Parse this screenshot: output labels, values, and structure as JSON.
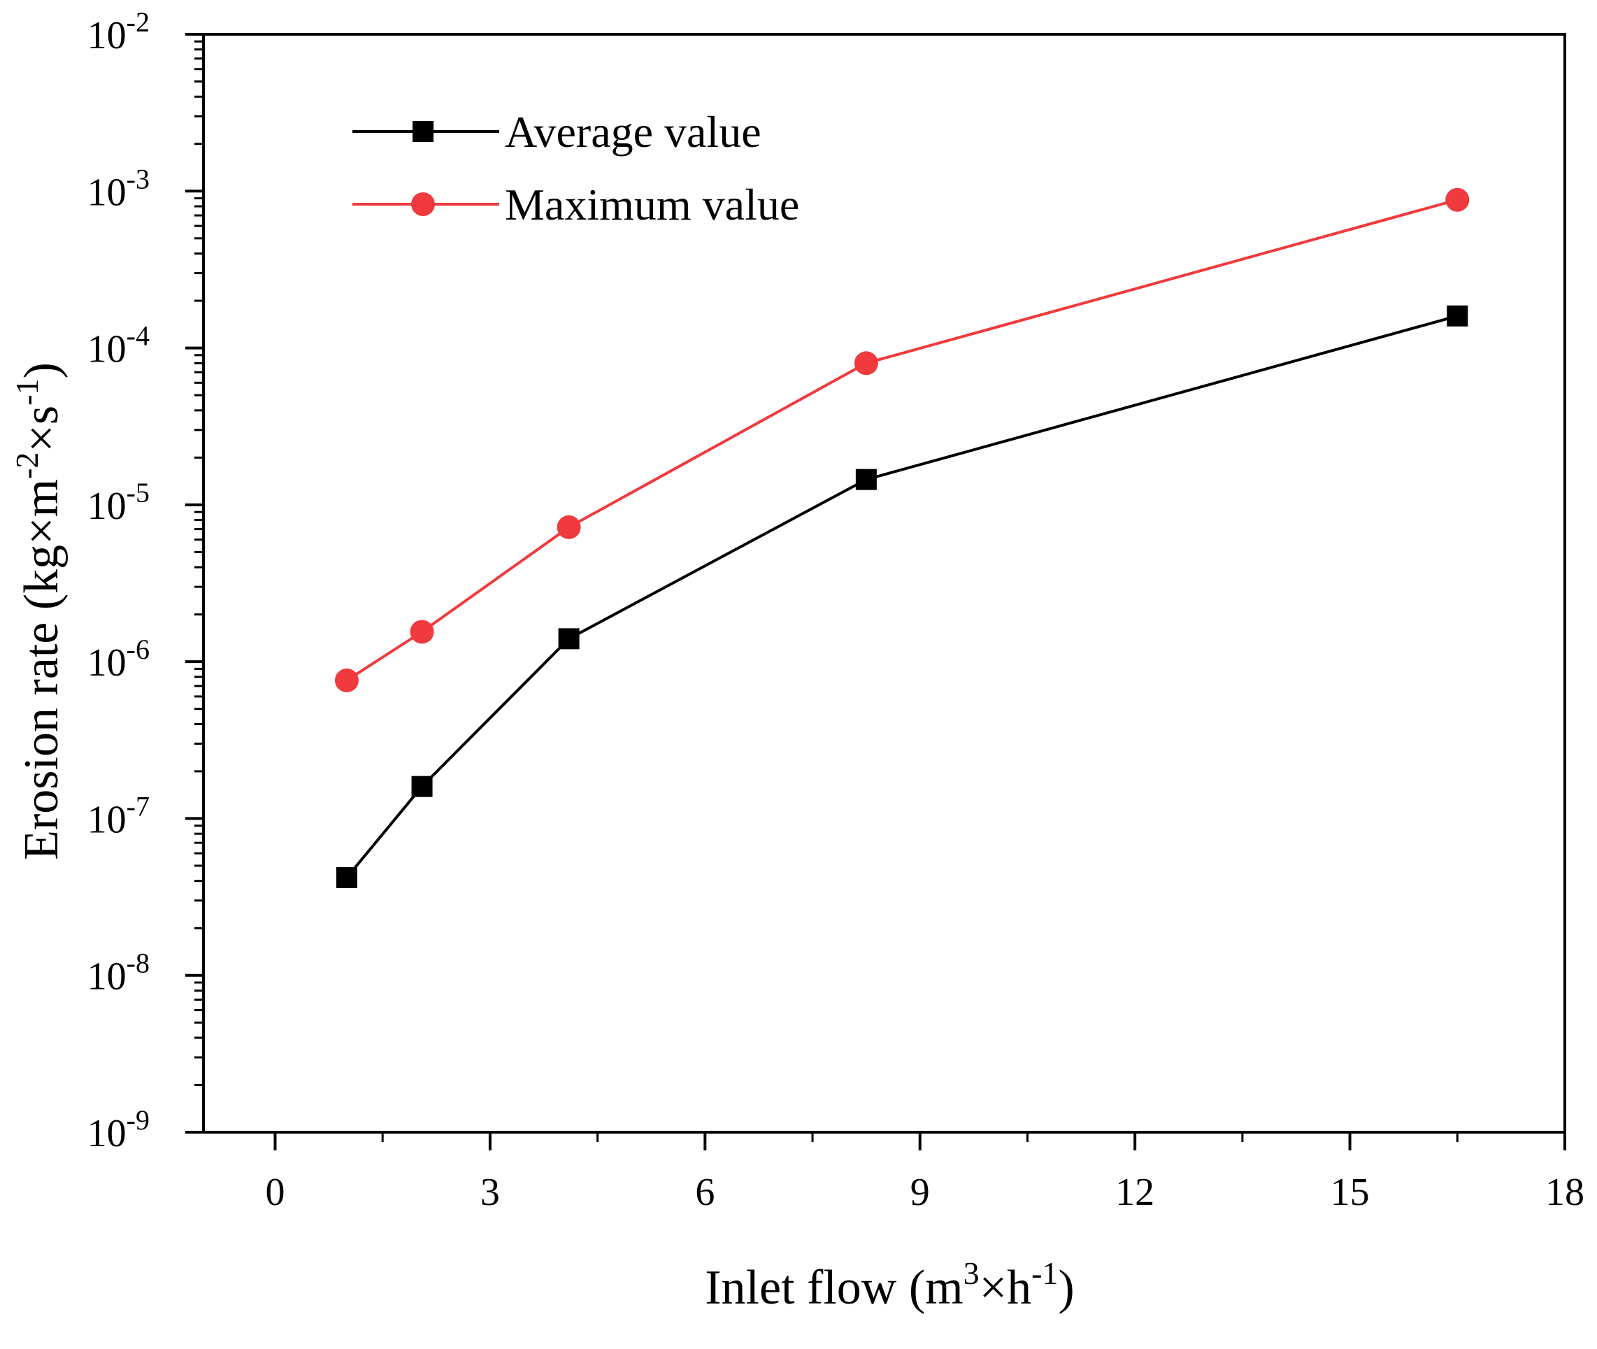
{
  "chart_data": {
    "type": "line",
    "title": "",
    "xlabel": "Inlet flow (m",
    "xlabel_sup": "3",
    "xlabel_mid": "×h",
    "xlabel_sup2": "-1",
    "xlabel_end": ")",
    "ylabel_main": "Erosion rate (kg×m",
    "ylabel_sup": "-2",
    "ylabel_mid": "×s",
    "ylabel_sup2": "-1",
    "ylabel_end": ")",
    "xlim": [
      -1,
      18
    ],
    "ylim": [
      1e-09,
      0.01
    ],
    "yscale": "log",
    "x_ticks": [
      0,
      3,
      6,
      9,
      12,
      15,
      18
    ],
    "x_tick_labels": [
      "0",
      "3",
      "6",
      "9",
      "12",
      "15",
      "18"
    ],
    "y_ticks": [
      -9,
      -8,
      -7,
      -6,
      -5,
      -4,
      -3,
      -2
    ],
    "y_tick_labels": [
      {
        "base": "10",
        "exp": "-9"
      },
      {
        "base": "10",
        "exp": "-8"
      },
      {
        "base": "10",
        "exp": "-7"
      },
      {
        "base": "10",
        "exp": "-6"
      },
      {
        "base": "10",
        "exp": "-5"
      },
      {
        "base": "10",
        "exp": "-4"
      },
      {
        "base": "10",
        "exp": "-3"
      },
      {
        "base": "10",
        "exp": "-2"
      }
    ],
    "legend_position": "top-left",
    "series": [
      {
        "name": "Average value",
        "color": "#000000",
        "marker": "square",
        "x": [
          1.0,
          2.05,
          4.1,
          8.25,
          16.5
        ],
        "y": [
          4.2e-08,
          1.6e-07,
          1.4e-06,
          1.45e-05,
          0.00016
        ]
      },
      {
        "name": "Maximum value",
        "color": "#f03a3e",
        "marker": "circle",
        "x": [
          1.0,
          2.05,
          4.1,
          8.25,
          16.5
        ],
        "y": [
          7.6e-07,
          1.55e-06,
          7.2e-06,
          8e-05,
          0.00088
        ]
      }
    ]
  }
}
